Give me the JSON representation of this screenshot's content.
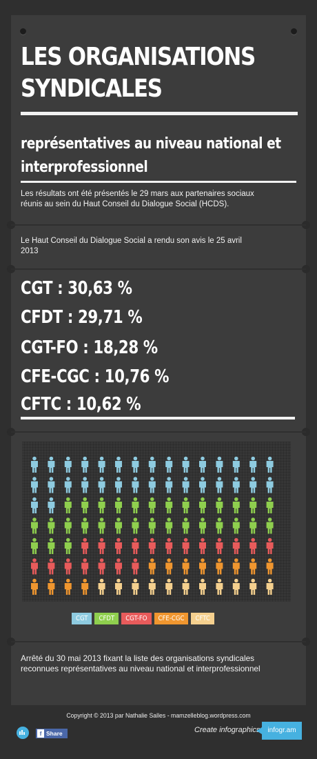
{
  "header": {
    "title_line1": "LES ORGANISATIONS",
    "title_line2": "SYNDICALES",
    "subtitle_line1": "représentatives au niveau national et",
    "subtitle_line2": "interprofessionnel",
    "intro_line1": "Les résultats ont été présentés le 29 mars aux partenaires sociaux",
    "intro_line2": "réunis au sein du Haut Conseil du Dialogue Social (HCDS)."
  },
  "avis": {
    "line1": "Le Haut Conseil du Dialogue Social a rendu son avis le 25 avril",
    "line2": "2013"
  },
  "stats": [
    {
      "label": "CGT : 30,63 %"
    },
    {
      "label": "CFDT : 29,71 %"
    },
    {
      "label": "CGT-FO : 18,28 %"
    },
    {
      "label": "CFE-CGC : 10,76 %"
    },
    {
      "label": "CFTC : 10,62 %"
    }
  ],
  "chart_data": {
    "type": "pictogram",
    "icon": "person-icon",
    "rows": 7,
    "columns": 15,
    "series": [
      {
        "name": "CGT",
        "count": 32,
        "color": "#8ecbe0"
      },
      {
        "name": "CFDT",
        "count": 31,
        "color": "#8fcf4e"
      },
      {
        "name": "CGT-FO",
        "count": 19,
        "color": "#e85b5b"
      },
      {
        "name": "CFE-CGC",
        "count": 12,
        "color": "#f0962f"
      },
      {
        "name": "CFTC",
        "count": 11,
        "color": "#f5d08e"
      }
    ]
  },
  "legend": [
    {
      "label": "CGT",
      "color": "#8ecbe0"
    },
    {
      "label": "CFDT",
      "color": "#8fcf4e"
    },
    {
      "label": "CGT-FO",
      "color": "#e85b5b"
    },
    {
      "label": "CFE-CGC",
      "color": "#f0962f"
    },
    {
      "label": "CFTC",
      "color": "#f5d08e"
    }
  ],
  "arrete": {
    "line1": "Arrêté du 30 mai 2013 fixant la liste des organisations syndicales",
    "line2": "reconnues représentatives au niveau national et interprofessionnel"
  },
  "footer": {
    "copyright": "Copyright © 2013 par Nathalie Salles - mamzelleblog.wordpress.com",
    "create": "Create infographics",
    "brand": "infogr.am",
    "share": "Share",
    "share_icon": "facebook-icon",
    "logo_icon": "infogram-logo-icon"
  }
}
